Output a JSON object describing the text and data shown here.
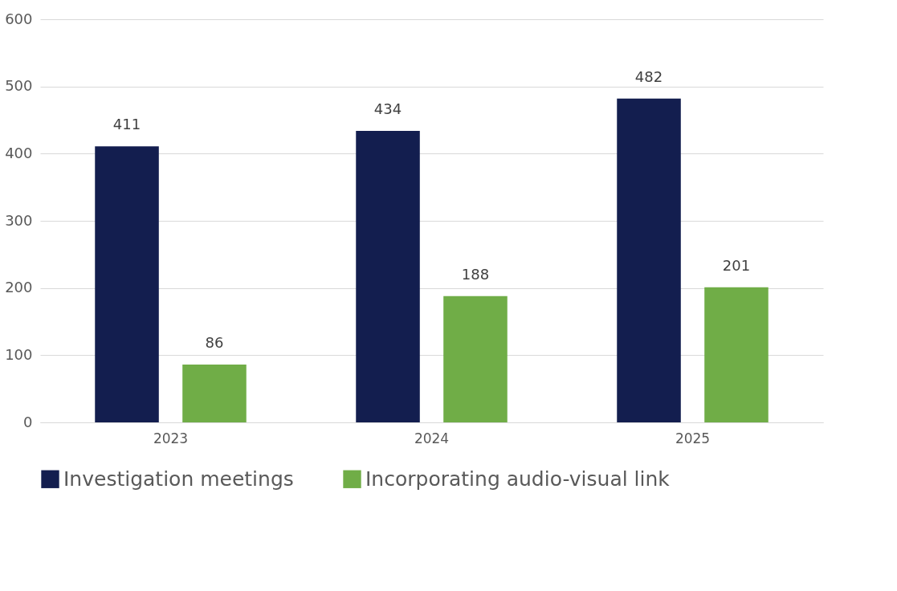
{
  "chart_data": {
    "type": "bar",
    "categories": [
      "2023",
      "2024",
      "2025"
    ],
    "series": [
      {
        "name": "Investigation meetings",
        "color": "#131e4f",
        "values": [
          411,
          434,
          482
        ]
      },
      {
        "name": "Incorporating audio-visual link",
        "color": "#70ad47",
        "values": [
          86,
          188,
          201
        ]
      }
    ],
    "ylim": [
      0,
      600
    ],
    "yticks": [
      0,
      100,
      200,
      300,
      400,
      500,
      600
    ],
    "grid": "y",
    "legend": "bottom",
    "data_labels": true
  }
}
